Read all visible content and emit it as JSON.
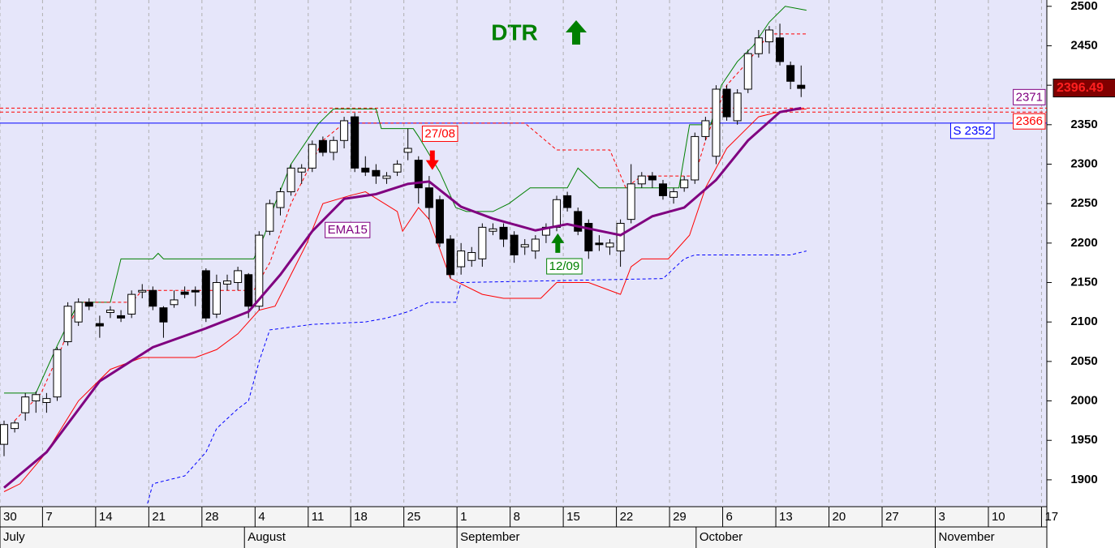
{
  "chart_data": {
    "type": "candlestick",
    "title": "DTR",
    "background": "#e6e6fa",
    "xlim": [
      0,
      98.5
    ],
    "ylim": [
      1866,
      2508
    ],
    "yticks": [
      1900,
      1950,
      2000,
      2050,
      2100,
      2150,
      2200,
      2250,
      2300,
      2350,
      2400,
      2450,
      2500
    ],
    "xticks": [
      {
        "value": 0,
        "label": "30"
      },
      {
        "value": 4,
        "label": "7"
      },
      {
        "value": 9,
        "label": "14"
      },
      {
        "value": 14,
        "label": "21"
      },
      {
        "value": 19,
        "label": "28"
      },
      {
        "value": 24,
        "label": "4"
      },
      {
        "value": 29,
        "label": "11"
      },
      {
        "value": 33,
        "label": "18"
      },
      {
        "value": 38,
        "label": "25"
      },
      {
        "value": 43,
        "label": "1"
      },
      {
        "value": 48,
        "label": "8"
      },
      {
        "value": 53,
        "label": "15"
      },
      {
        "value": 58,
        "label": "22"
      },
      {
        "value": 63,
        "label": "29"
      },
      {
        "value": 68,
        "label": "6"
      },
      {
        "value": 73,
        "label": "13"
      },
      {
        "value": 78,
        "label": "20"
      },
      {
        "value": 83,
        "label": "27"
      },
      {
        "value": 88,
        "label": "3"
      },
      {
        "value": 93,
        "label": "10"
      },
      {
        "value": 98,
        "label": "17"
      }
    ],
    "months": [
      {
        "value": 0,
        "label": "July"
      },
      {
        "value": 23,
        "label": "August"
      },
      {
        "value": 43,
        "label": "September"
      },
      {
        "value": 65.5,
        "label": "October"
      },
      {
        "value": 88,
        "label": "November"
      }
    ],
    "grid": true,
    "x": [
      0,
      1,
      2,
      3,
      4,
      5,
      6,
      7,
      8,
      9,
      10,
      11,
      12,
      13,
      14,
      15,
      16,
      17,
      18,
      19,
      20,
      21,
      22,
      23,
      24,
      25,
      26,
      27,
      28,
      29,
      30,
      31,
      32,
      33,
      34,
      35,
      36,
      37,
      38,
      39,
      40,
      41,
      42,
      43,
      44,
      45,
      46,
      47,
      48,
      49,
      50,
      51,
      52,
      53,
      54,
      55,
      56,
      57,
      58,
      59,
      60,
      61,
      62,
      63,
      64,
      65,
      66,
      67,
      68,
      69,
      70,
      71,
      72,
      73,
      74,
      75
    ],
    "open": [
      1945,
      1965,
      1985,
      2000,
      1998,
      2005,
      2075,
      2100,
      2125,
      2098,
      2112,
      2108,
      2110,
      2138,
      2140,
      2118,
      2122,
      2138,
      2140,
      2165,
      2110,
      2148,
      2150,
      2160,
      2120,
      2215,
      2245,
      2265,
      2290,
      2295,
      2330,
      2315,
      2330,
      2360,
      2295,
      2292,
      2282,
      2290,
      2315,
      2305,
      2270,
      2255,
      2205,
      2170,
      2178,
      2180,
      2215,
      2220,
      2210,
      2195,
      2190,
      2210,
      2220,
      2260,
      2240,
      2225,
      2200,
      2195,
      2190,
      2230,
      2275,
      2285,
      2275,
      2258,
      2270,
      2280,
      2335,
      2310,
      2395,
      2355,
      2395,
      2440,
      2455,
      2460,
      2425,
      2400
    ],
    "high": [
      1975,
      1975,
      2010,
      2012,
      2010,
      2068,
      2125,
      2130,
      2130,
      2108,
      2120,
      2115,
      2140,
      2148,
      2145,
      2120,
      2140,
      2145,
      2145,
      2168,
      2160,
      2160,
      2170,
      2162,
      2215,
      2255,
      2270,
      2300,
      2300,
      2330,
      2335,
      2335,
      2360,
      2365,
      2310,
      2300,
      2290,
      2305,
      2345,
      2310,
      2285,
      2260,
      2210,
      2200,
      2195,
      2225,
      2225,
      2225,
      2215,
      2205,
      2210,
      2225,
      2260,
      2265,
      2245,
      2230,
      2210,
      2205,
      2230,
      2300,
      2290,
      2290,
      2280,
      2270,
      2285,
      2340,
      2360,
      2400,
      2400,
      2395,
      2445,
      2470,
      2475,
      2478,
      2430,
      2425
    ],
    "low": [
      1930,
      1960,
      1975,
      1985,
      1985,
      2000,
      2070,
      2095,
      2115,
      2080,
      2105,
      2100,
      2105,
      2130,
      2115,
      2080,
      2118,
      2130,
      2120,
      2100,
      2105,
      2140,
      2140,
      2105,
      2115,
      2210,
      2235,
      2260,
      2275,
      2290,
      2310,
      2305,
      2320,
      2290,
      2285,
      2275,
      2275,
      2285,
      2305,
      2250,
      2230,
      2195,
      2155,
      2160,
      2170,
      2170,
      2210,
      2195,
      2175,
      2185,
      2180,
      2200,
      2215,
      2240,
      2210,
      2180,
      2190,
      2185,
      2170,
      2225,
      2270,
      2270,
      2255,
      2250,
      2265,
      2275,
      2330,
      2300,
      2355,
      2350,
      2390,
      2435,
      2440,
      2425,
      2395,
      2385
    ],
    "close": [
      1970,
      1972,
      2005,
      2008,
      2003,
      2065,
      2120,
      2125,
      2120,
      2095,
      2115,
      2105,
      2135,
      2140,
      2120,
      2100,
      2128,
      2135,
      2138,
      2105,
      2150,
      2152,
      2165,
      2120,
      2210,
      2250,
      2265,
      2295,
      2295,
      2325,
      2315,
      2330,
      2355,
      2295,
      2290,
      2285,
      2285,
      2300,
      2320,
      2270,
      2245,
      2200,
      2160,
      2190,
      2188,
      2220,
      2218,
      2205,
      2185,
      2198,
      2205,
      2220,
      2255,
      2245,
      2215,
      2190,
      2198,
      2200,
      2225,
      2275,
      2285,
      2280,
      2260,
      2265,
      2280,
      2335,
      2355,
      2395,
      2360,
      2390,
      2440,
      2460,
      2470,
      2430,
      2405,
      2396
    ],
    "lines": [
      {
        "color": "#008000",
        "width": 1,
        "dash": false,
        "x": [
          0,
          3,
          5,
          7,
          10,
          11,
          14,
          14.5,
          15,
          23.5,
          24.5,
          25.5,
          27,
          29.5,
          31,
          35,
          35.5,
          38.5,
          39,
          41,
          42.5,
          43.5,
          46,
          47.5,
          49.5,
          53,
          54,
          56,
          63.5,
          64.5,
          66.5,
          67.5,
          69,
          70.5,
          72,
          73.5,
          75.5
        ],
        "values": [
          2010,
          2010,
          2070,
          2125,
          2125,
          2180,
          2180,
          2187,
          2180,
          2180,
          2210,
          2250,
          2300,
          2350,
          2370,
          2370,
          2345,
          2345,
          2335,
          2290,
          2245,
          2240,
          2240,
          2250,
          2270,
          2270,
          2295,
          2270,
          2270,
          2350,
          2350,
          2400,
          2430,
          2450,
          2480,
          2500,
          2495
        ]
      },
      {
        "color": "#ff0000",
        "width": 1,
        "dash": false,
        "x": [
          0,
          1.5,
          4,
          7,
          10,
          13,
          18,
          20,
          22,
          24,
          25.5,
          27,
          28.5,
          30,
          32.5,
          34,
          37,
          37.5,
          39,
          40,
          42,
          45,
          47,
          50.5,
          52,
          55,
          58,
          59,
          60,
          62.5,
          64.5,
          66,
          68,
          71,
          72.5,
          74,
          75.5
        ],
        "values": [
          1885,
          1895,
          1935,
          2000,
          2040,
          2055,
          2055,
          2065,
          2085,
          2115,
          2120,
          2160,
          2200,
          2250,
          2260,
          2265,
          2240,
          2215,
          2245,
          2230,
          2155,
          2135,
          2130,
          2130,
          2150,
          2150,
          2135,
          2170,
          2180,
          2180,
          2210,
          2270,
          2320,
          2360,
          2365,
          2368,
          2370
        ]
      },
      {
        "color": "#ff0000",
        "width": 1,
        "dash": true,
        "x": [
          1,
          3.5,
          5.5,
          7,
          12,
          13,
          23.5,
          25,
          27,
          28.5,
          30,
          32,
          49,
          52,
          57,
          58.5,
          60,
          65,
          66,
          68,
          70,
          72,
          75.5
        ],
        "values": [
          1975,
          2010,
          2070,
          2125,
          2125,
          2140,
          2140,
          2175,
          2250,
          2290,
          2330,
          2352,
          2352,
          2318,
          2318,
          2270,
          2285,
          2285,
          2330,
          2400,
          2430,
          2465,
          2465
        ]
      },
      {
        "color": "#0000ff",
        "width": 1,
        "dash": true,
        "x": [
          13.5,
          14,
          17,
          19,
          20,
          22,
          23,
          24,
          25,
          29,
          34,
          36,
          38,
          40,
          42.5,
          43,
          62,
          64,
          65,
          74,
          75.5
        ],
        "values": [
          1870,
          1895,
          1905,
          1935,
          1965,
          1990,
          2000,
          2050,
          2090,
          2097,
          2100,
          2105,
          2113,
          2125,
          2125,
          2150,
          2155,
          2180,
          2185,
          2185,
          2190
        ]
      },
      {
        "name": "EMA15",
        "color": "#800080",
        "width": 3,
        "dash": false,
        "x": [
          0,
          4,
          9,
          14,
          19,
          23,
          26,
          29,
          32,
          35,
          38,
          40,
          43,
          46,
          50,
          53,
          58,
          61,
          64,
          67,
          70,
          73,
          75
        ],
        "values": [
          1890,
          1935,
          2025,
          2068,
          2092,
          2113,
          2160,
          2215,
          2256,
          2262,
          2275,
          2278,
          2246,
          2231,
          2216,
          2224,
          2210,
          2234,
          2245,
          2280,
          2330,
          2366,
          2371
        ]
      }
    ],
    "legend_label": {
      "series": 4,
      "x": 32.7,
      "y": 2216
    },
    "levels": [
      {
        "value": 2371,
        "color": "#ff0000",
        "label_color": "#800080",
        "dash": true
      },
      {
        "value": 2366,
        "color": "#ff0000",
        "label_color": "#ff0000",
        "dash": true
      },
      {
        "value": 2352,
        "label": "S 2352",
        "color": "#0000ff",
        "label_color": "#0000ff",
        "dash": false
      }
    ],
    "last_price": 2396.49,
    "annotations": [
      {
        "text": "27/08",
        "x": 41.4,
        "y": 2338,
        "color": "#ff0000",
        "arrow": "down",
        "arrow_x": 40.3,
        "arrow_y": 2305
      },
      {
        "text": "12/09",
        "x": 53.1,
        "y": 2170,
        "color": "#008000",
        "arrow": "up",
        "arrow_x": 52.1,
        "arrow_y": 2200
      }
    ]
  }
}
